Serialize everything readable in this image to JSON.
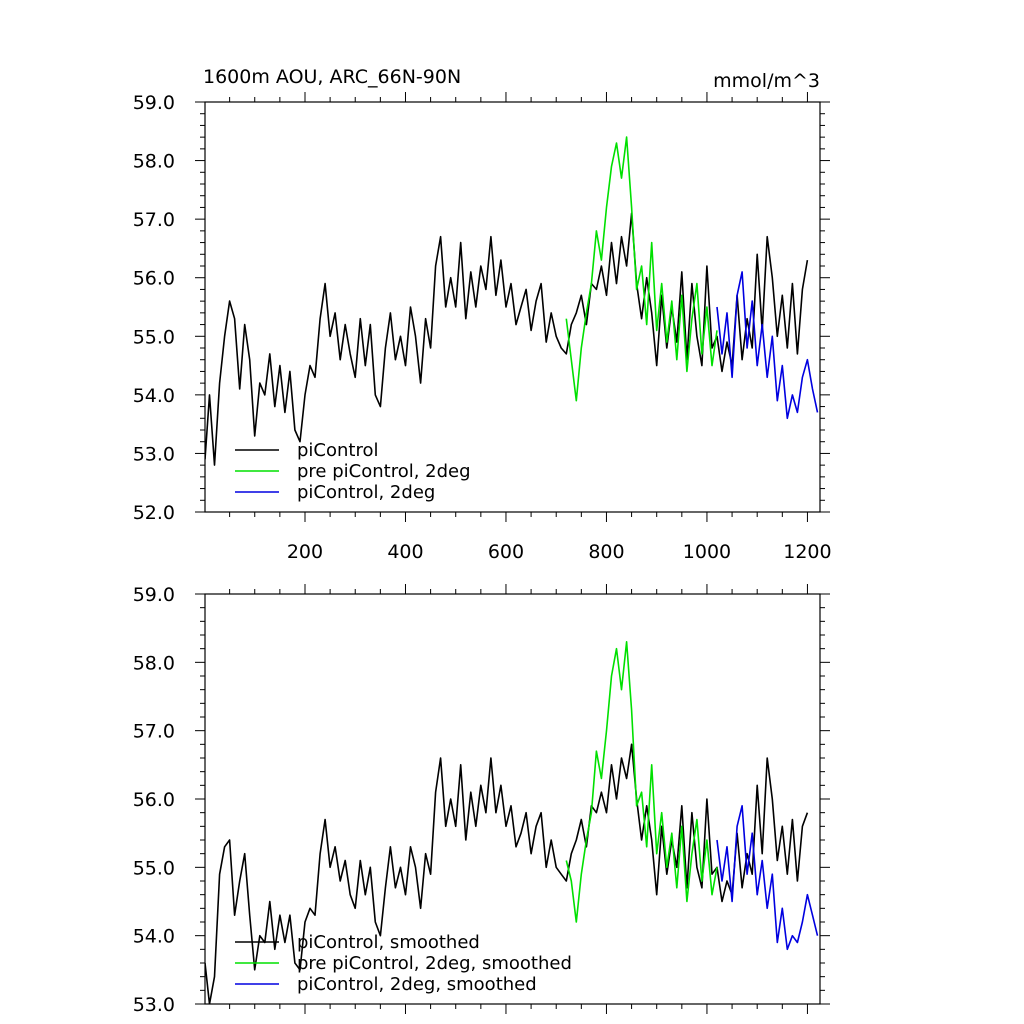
{
  "header": {
    "title": "1600m AOU, ARC_66N-90N",
    "units": "mmol/m^3"
  },
  "chart_data": [
    {
      "type": "line",
      "title": "1600m AOU, ARC_66N-90N",
      "units": "mmol/m^3",
      "xlim": [
        1,
        1225
      ],
      "ylim": [
        52.0,
        59.0
      ],
      "xticks": [
        200,
        400,
        600,
        800,
        1000,
        1200
      ],
      "xtick_labels": [
        "200",
        "400",
        "600",
        "800",
        "1000",
        "1200"
      ],
      "yticks": [
        52.0,
        53.0,
        54.0,
        55.0,
        56.0,
        57.0,
        58.0,
        59.0
      ],
      "ytick_labels": [
        "52.0",
        "53.0",
        "54.0",
        "55.0",
        "56.0",
        "57.0",
        "58.0",
        "59.0"
      ],
      "grid": false,
      "legend": "bottom-left",
      "series": [
        {
          "name": "piControl",
          "color": "#000000",
          "x": [
            1,
            10,
            20,
            30,
            40,
            50,
            60,
            70,
            80,
            90,
            100,
            110,
            120,
            130,
            140,
            150,
            160,
            170,
            180,
            190,
            200,
            210,
            220,
            230,
            240,
            250,
            260,
            270,
            280,
            290,
            300,
            310,
            320,
            330,
            340,
            350,
            360,
            370,
            380,
            390,
            400,
            410,
            420,
            430,
            440,
            450,
            460,
            470,
            480,
            490,
            500,
            510,
            520,
            530,
            540,
            550,
            560,
            570,
            580,
            590,
            600,
            610,
            620,
            630,
            640,
            650,
            660,
            670,
            680,
            690,
            700,
            710,
            720,
            730,
            740,
            750,
            760,
            770,
            780,
            790,
            800,
            810,
            820,
            830,
            840,
            850,
            860,
            870,
            880,
            890,
            900,
            910,
            920,
            930,
            940,
            950,
            960,
            970,
            980,
            990,
            1000,
            1010,
            1020,
            1030,
            1040,
            1050,
            1060,
            1070,
            1080,
            1090,
            1100,
            1110,
            1120,
            1130,
            1140,
            1150,
            1160,
            1170,
            1180,
            1190,
            1200
          ],
          "values": [
            52.9,
            54.0,
            52.8,
            54.2,
            55.0,
            55.6,
            55.3,
            54.1,
            55.2,
            54.6,
            53.3,
            54.2,
            54.0,
            54.7,
            53.8,
            54.5,
            53.7,
            54.4,
            53.4,
            53.2,
            54.0,
            54.5,
            54.3,
            55.3,
            55.9,
            55.0,
            55.4,
            54.6,
            55.2,
            54.7,
            54.3,
            55.3,
            54.5,
            55.2,
            54.0,
            53.8,
            54.8,
            55.4,
            54.6,
            55.0,
            54.5,
            55.5,
            55.0,
            54.2,
            55.3,
            54.8,
            56.2,
            56.7,
            55.5,
            56.0,
            55.5,
            56.6,
            55.3,
            56.1,
            55.5,
            56.2,
            55.8,
            56.7,
            55.7,
            56.3,
            55.5,
            55.9,
            55.2,
            55.5,
            55.8,
            55.1,
            55.6,
            55.9,
            54.9,
            55.4,
            55.0,
            54.8,
            54.7,
            55.2,
            55.4,
            55.7,
            55.2,
            55.9,
            55.8,
            56.2,
            55.7,
            56.6,
            55.9,
            56.7,
            56.2,
            57.1,
            55.9,
            55.3,
            56.0,
            55.4,
            54.5,
            55.7,
            54.8,
            55.5,
            54.9,
            56.1,
            54.6,
            55.9,
            55.0,
            54.5,
            56.2,
            54.8,
            55.0,
            54.4,
            54.9,
            54.5,
            55.7,
            54.6,
            55.3,
            54.8,
            56.4,
            55.1,
            56.7,
            56.0,
            55.0,
            55.7,
            54.8,
            55.9,
            54.7,
            55.8,
            56.3
          ]
        },
        {
          "name": "pre piControl, 2deg",
          "color": "#00e000",
          "x": [
            720,
            730,
            740,
            750,
            760,
            770,
            780,
            790,
            800,
            810,
            820,
            830,
            840,
            850,
            860,
            870,
            880,
            890,
            900,
            910,
            920,
            930,
            940,
            950,
            960,
            970,
            980,
            990,
            1000,
            1010,
            1020
          ],
          "values": [
            55.3,
            54.6,
            53.9,
            54.8,
            55.4,
            55.9,
            56.8,
            56.3,
            57.2,
            57.9,
            58.3,
            57.7,
            58.4,
            57.2,
            55.8,
            56.2,
            55.2,
            56.6,
            55.1,
            55.9,
            54.9,
            55.6,
            54.6,
            55.7,
            54.4,
            55.3,
            55.9,
            54.7,
            55.5,
            54.5,
            55.1
          ]
        },
        {
          "name": "piControl, 2deg",
          "color": "#0000e0",
          "x": [
            1020,
            1030,
            1040,
            1050,
            1060,
            1070,
            1080,
            1090,
            1100,
            1110,
            1120,
            1130,
            1140,
            1150,
            1160,
            1170,
            1180,
            1190,
            1200,
            1210,
            1220
          ],
          "values": [
            55.5,
            54.7,
            55.4,
            54.3,
            55.7,
            56.1,
            54.8,
            55.6,
            54.5,
            55.2,
            54.3,
            55.0,
            53.9,
            54.5,
            53.6,
            54.0,
            53.7,
            54.3,
            54.6,
            54.1,
            53.7
          ]
        }
      ],
      "legend_entries": [
        "piControl",
        "pre piControl, 2deg",
        "piControl, 2deg"
      ]
    },
    {
      "type": "line",
      "xlim": [
        1,
        1225
      ],
      "ylim": [
        53.0,
        59.0
      ],
      "xticks": [
        200,
        400,
        600,
        800,
        1000,
        1200
      ],
      "yticks": [
        53.0,
        54.0,
        55.0,
        56.0,
        57.0,
        58.0,
        59.0
      ],
      "ytick_labels": [
        "53.0",
        "54.0",
        "55.0",
        "56.0",
        "57.0",
        "58.0",
        "59.0"
      ],
      "grid": false,
      "legend": "bottom-left",
      "series": [
        {
          "name": "piControl, smoothed",
          "color": "#000000",
          "x": [
            1,
            10,
            20,
            30,
            40,
            50,
            60,
            70,
            80,
            90,
            100,
            110,
            120,
            130,
            140,
            150,
            160,
            170,
            180,
            190,
            200,
            210,
            220,
            230,
            240,
            250,
            260,
            270,
            280,
            290,
            300,
            310,
            320,
            330,
            340,
            350,
            360,
            370,
            380,
            390,
            400,
            410,
            420,
            430,
            440,
            450,
            460,
            470,
            480,
            490,
            500,
            510,
            520,
            530,
            540,
            550,
            560,
            570,
            580,
            590,
            600,
            610,
            620,
            630,
            640,
            650,
            660,
            670,
            680,
            690,
            700,
            710,
            720,
            730,
            740,
            750,
            760,
            770,
            780,
            790,
            800,
            810,
            820,
            830,
            840,
            850,
            860,
            870,
            880,
            890,
            900,
            910,
            920,
            930,
            940,
            950,
            960,
            970,
            980,
            990,
            1000,
            1010,
            1020,
            1030,
            1040,
            1050,
            1060,
            1070,
            1080,
            1090,
            1100,
            1110,
            1120,
            1130,
            1140,
            1150,
            1160,
            1170,
            1180,
            1190,
            1200
          ],
          "values": [
            53.6,
            53.0,
            53.4,
            54.9,
            55.3,
            55.4,
            54.3,
            54.8,
            55.2,
            54.3,
            53.5,
            54.0,
            53.9,
            54.5,
            53.8,
            54.3,
            53.9,
            54.3,
            53.6,
            53.5,
            54.2,
            54.4,
            54.3,
            55.2,
            55.7,
            55.0,
            55.3,
            54.8,
            55.1,
            54.6,
            54.4,
            55.1,
            54.6,
            55.0,
            54.2,
            54.0,
            54.7,
            55.3,
            54.7,
            55.0,
            54.6,
            55.3,
            55.0,
            54.4,
            55.2,
            54.9,
            56.1,
            56.6,
            55.6,
            56.0,
            55.6,
            56.5,
            55.4,
            56.1,
            55.6,
            56.2,
            55.8,
            56.6,
            55.8,
            56.2,
            55.6,
            55.9,
            55.3,
            55.5,
            55.8,
            55.2,
            55.6,
            55.8,
            55.0,
            55.4,
            55.0,
            54.9,
            54.8,
            55.2,
            55.4,
            55.7,
            55.3,
            55.9,
            55.8,
            56.1,
            55.8,
            56.5,
            56.0,
            56.6,
            56.3,
            56.8,
            56.0,
            55.4,
            55.9,
            55.4,
            54.6,
            55.6,
            54.9,
            55.4,
            55.0,
            55.9,
            54.7,
            55.8,
            55.0,
            54.7,
            56.0,
            54.9,
            55.0,
            54.5,
            54.8,
            54.6,
            55.5,
            54.7,
            55.2,
            54.9,
            56.2,
            55.2,
            56.6,
            56.0,
            55.1,
            55.6,
            54.9,
            55.7,
            54.8,
            55.6,
            55.8
          ]
        },
        {
          "name": "pre piControl, 2deg, smoothed",
          "color": "#00e000",
          "x": [
            720,
            730,
            740,
            750,
            760,
            770,
            780,
            790,
            800,
            810,
            820,
            830,
            840,
            850,
            860,
            870,
            880,
            890,
            900,
            910,
            920,
            930,
            940,
            950,
            960,
            970,
            980,
            990,
            1000,
            1010,
            1020
          ],
          "values": [
            55.1,
            54.8,
            54.2,
            54.9,
            55.4,
            55.8,
            56.7,
            56.3,
            57.0,
            57.8,
            58.2,
            57.6,
            58.3,
            57.3,
            55.9,
            56.1,
            55.3,
            56.5,
            55.2,
            55.8,
            55.0,
            55.5,
            54.7,
            55.6,
            54.5,
            55.2,
            55.7,
            54.8,
            55.4,
            54.6,
            55.0
          ]
        },
        {
          "name": "piControl, 2deg, smoothed",
          "color": "#0000e0",
          "x": [
            1020,
            1030,
            1040,
            1050,
            1060,
            1070,
            1080,
            1090,
            1100,
            1110,
            1120,
            1130,
            1140,
            1150,
            1160,
            1170,
            1180,
            1190,
            1200,
            1210,
            1220
          ],
          "values": [
            55.4,
            54.8,
            55.3,
            54.5,
            55.6,
            55.9,
            54.9,
            55.5,
            54.6,
            55.1,
            54.4,
            54.9,
            53.9,
            54.4,
            53.8,
            54.0,
            53.9,
            54.2,
            54.6,
            54.3,
            54.0
          ]
        }
      ],
      "legend_entries": [
        "piControl, smoothed",
        "pre piControl, 2deg, smoothed",
        "piControl, 2deg, smoothed"
      ]
    }
  ]
}
